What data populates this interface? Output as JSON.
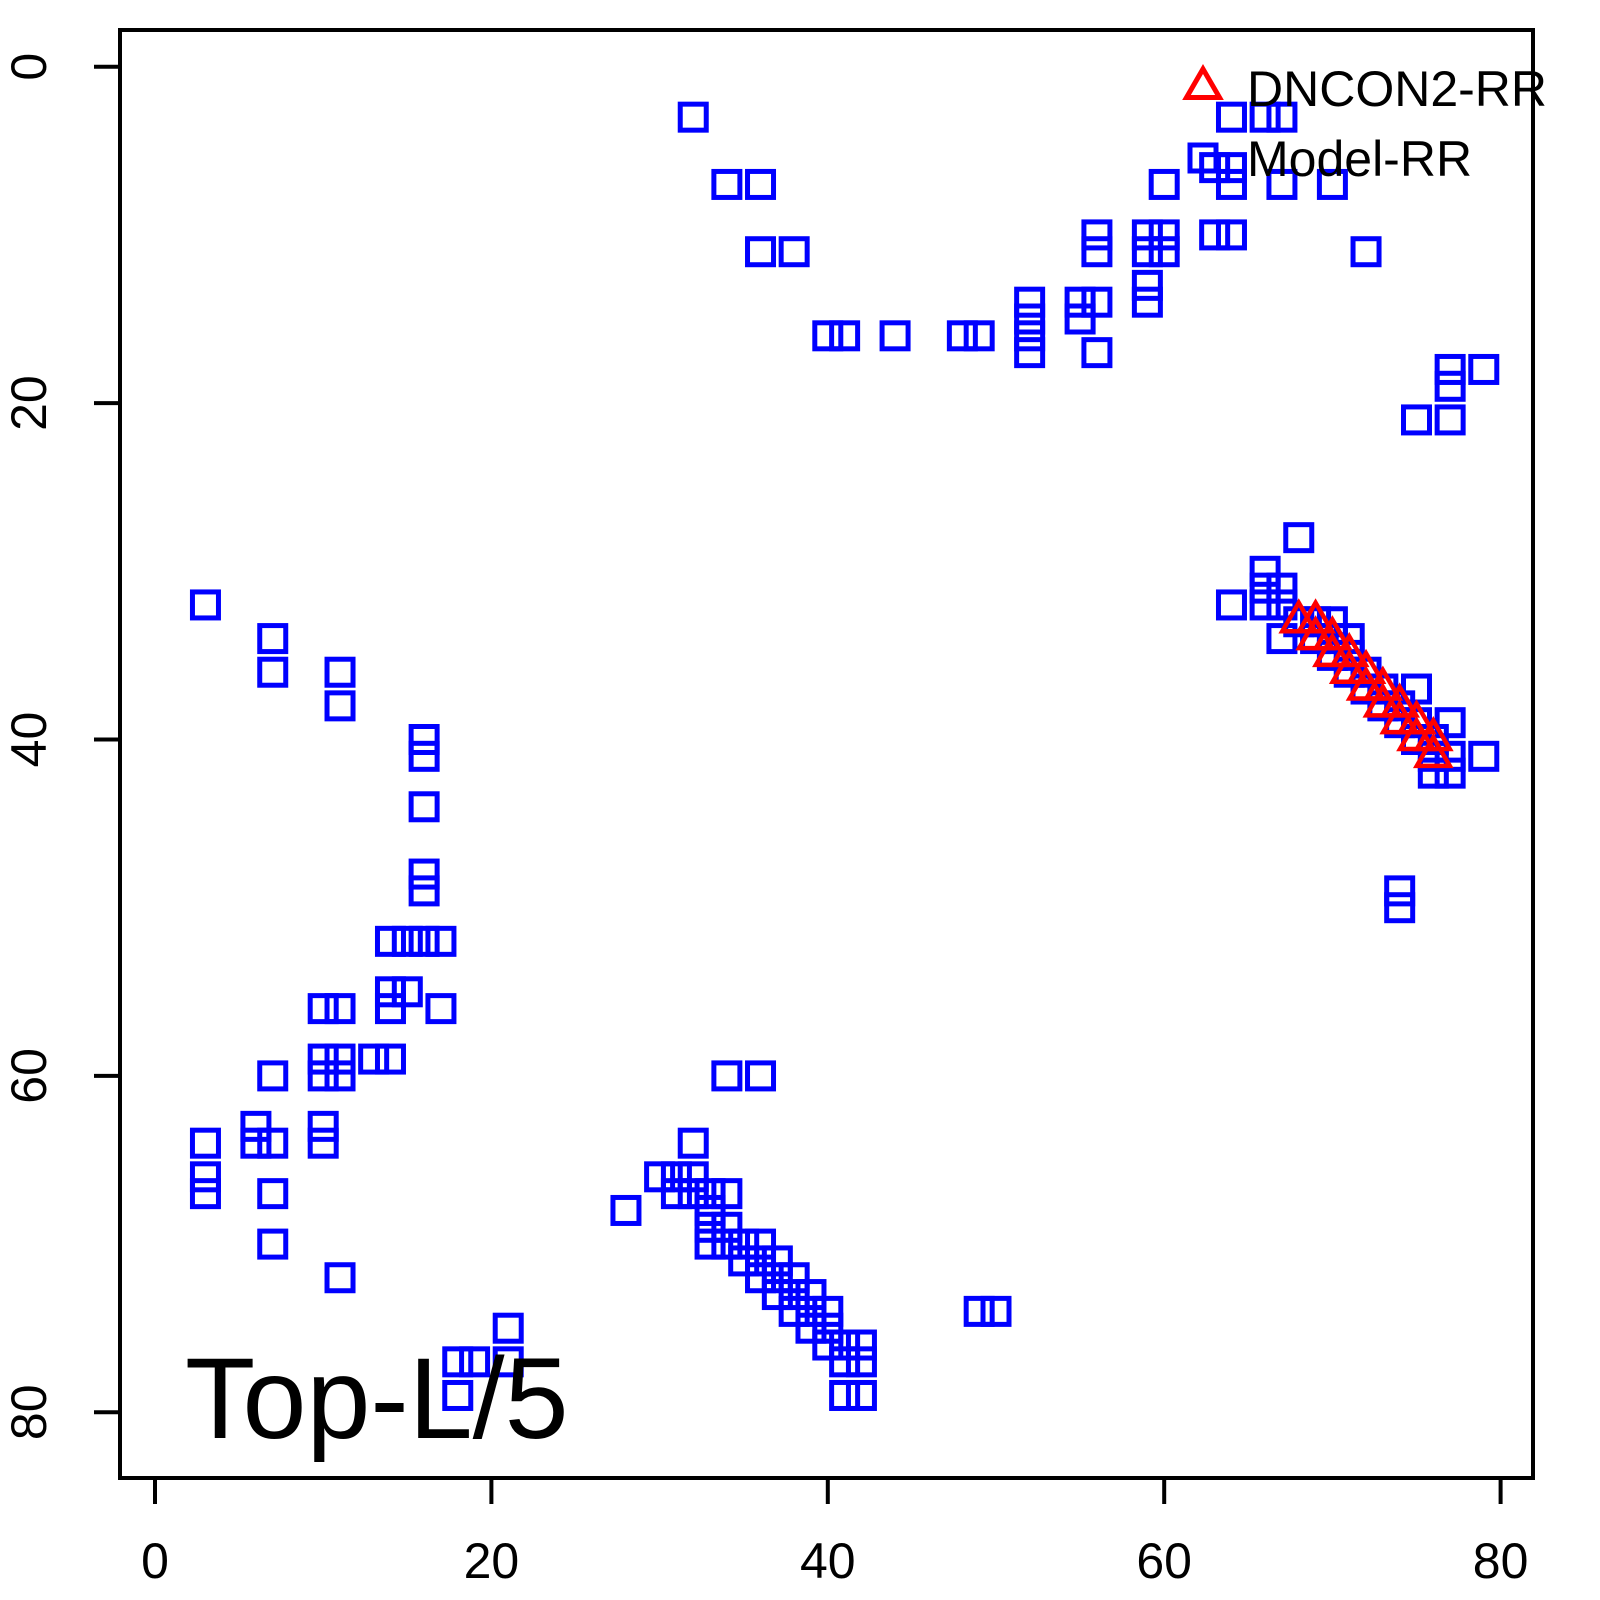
{
  "title": "Top-L/5",
  "legend": {
    "items": [
      {
        "label": "DNCON2-RR",
        "marker": "triangle-icon",
        "color": "#ff0000"
      },
      {
        "label": "Model-RR",
        "marker": "square-icon",
        "color": "#0000ff"
      }
    ]
  },
  "axes": {
    "x_ticks": [
      "0",
      "20",
      "40",
      "60",
      "80"
    ],
    "y_ticks": [
      "0",
      "20",
      "40",
      "60",
      "80"
    ]
  },
  "colors": {
    "model_rr": "#0000ff",
    "dncon2_rr": "#ff0000",
    "axis": "#000000",
    "background": "#ffffff"
  },
  "chart_data": {
    "type": "scatter",
    "title": "Top-L/5",
    "xlabel": "",
    "ylabel": "",
    "x_range": [
      0,
      82
    ],
    "y_range": [
      0,
      84
    ],
    "y_axis_inverted": true,
    "grid": false,
    "legend_position": "top-right",
    "series": [
      {
        "name": "Model-RR",
        "marker": "square",
        "color": "#0000ff",
        "points": [
          [
            32,
            3
          ],
          [
            34,
            7
          ],
          [
            36,
            7
          ],
          [
            36,
            11
          ],
          [
            38,
            11
          ],
          [
            40,
            16
          ],
          [
            41,
            16
          ],
          [
            44,
            16
          ],
          [
            48,
            16
          ],
          [
            49,
            16
          ],
          [
            64,
            3
          ],
          [
            66,
            3
          ],
          [
            67,
            3
          ],
          [
            63,
            6
          ],
          [
            64,
            6
          ],
          [
            60,
            7
          ],
          [
            64,
            7
          ],
          [
            67,
            7
          ],
          [
            70,
            7
          ],
          [
            56,
            10
          ],
          [
            59,
            10
          ],
          [
            60,
            10
          ],
          [
            63,
            10
          ],
          [
            64,
            10
          ],
          [
            56,
            11
          ],
          [
            59,
            11
          ],
          [
            60,
            11
          ],
          [
            72,
            11
          ],
          [
            59,
            13
          ],
          [
            52,
            14
          ],
          [
            55,
            14
          ],
          [
            56,
            14
          ],
          [
            59,
            14
          ],
          [
            52,
            15
          ],
          [
            55,
            15
          ],
          [
            52,
            16
          ],
          [
            52,
            17
          ],
          [
            56,
            17
          ],
          [
            77,
            18
          ],
          [
            79,
            18
          ],
          [
            77,
            19
          ],
          [
            75,
            21
          ],
          [
            77,
            21
          ],
          [
            68,
            28
          ],
          [
            66,
            30
          ],
          [
            66,
            31
          ],
          [
            67,
            31
          ],
          [
            64,
            32
          ],
          [
            66,
            32
          ],
          [
            67,
            32
          ],
          [
            68,
            33
          ],
          [
            69,
            33
          ],
          [
            70,
            33
          ],
          [
            67,
            34
          ],
          [
            69,
            34
          ],
          [
            70,
            34
          ],
          [
            71,
            34
          ],
          [
            70,
            35
          ],
          [
            71,
            35
          ],
          [
            71,
            36
          ],
          [
            72,
            36
          ],
          [
            72,
            37
          ],
          [
            73,
            37
          ],
          [
            75,
            37
          ],
          [
            73,
            38
          ],
          [
            74,
            38
          ],
          [
            74,
            39
          ],
          [
            75,
            39
          ],
          [
            77,
            39
          ],
          [
            75,
            40
          ],
          [
            76,
            40
          ],
          [
            76,
            41
          ],
          [
            77,
            41
          ],
          [
            79,
            41
          ],
          [
            76,
            42
          ],
          [
            77,
            42
          ],
          [
            74,
            49
          ],
          [
            74,
            50
          ],
          [
            3,
            32
          ],
          [
            7,
            34
          ],
          [
            7,
            36
          ],
          [
            11,
            36
          ],
          [
            11,
            38
          ],
          [
            16,
            40
          ],
          [
            16,
            41
          ],
          [
            16,
            44
          ],
          [
            16,
            48
          ],
          [
            16,
            49
          ],
          [
            14,
            52
          ],
          [
            15,
            52
          ],
          [
            16,
            52
          ],
          [
            17,
            52
          ],
          [
            14,
            55
          ],
          [
            15,
            55
          ],
          [
            10,
            56
          ],
          [
            11,
            56
          ],
          [
            14,
            56
          ],
          [
            17,
            56
          ],
          [
            10,
            59
          ],
          [
            11,
            59
          ],
          [
            13,
            59
          ],
          [
            14,
            59
          ],
          [
            7,
            60
          ],
          [
            10,
            60
          ],
          [
            11,
            60
          ],
          [
            6,
            63
          ],
          [
            10,
            63
          ],
          [
            3,
            64
          ],
          [
            6,
            64
          ],
          [
            7,
            64
          ],
          [
            10,
            64
          ],
          [
            3,
            66
          ],
          [
            3,
            67
          ],
          [
            7,
            67
          ],
          [
            7,
            70
          ],
          [
            11,
            72
          ],
          [
            21,
            75
          ],
          [
            18,
            77
          ],
          [
            19,
            77
          ],
          [
            21,
            77
          ],
          [
            18,
            79
          ],
          [
            34,
            60
          ],
          [
            36,
            60
          ],
          [
            32,
            64
          ],
          [
            30,
            66
          ],
          [
            31,
            66
          ],
          [
            32,
            66
          ],
          [
            31,
            67
          ],
          [
            32,
            67
          ],
          [
            33,
            67
          ],
          [
            34,
            67
          ],
          [
            28,
            68
          ],
          [
            33,
            68
          ],
          [
            33,
            69
          ],
          [
            34,
            69
          ],
          [
            33,
            70
          ],
          [
            34,
            70
          ],
          [
            35,
            70
          ],
          [
            36,
            70
          ],
          [
            35,
            71
          ],
          [
            36,
            71
          ],
          [
            37,
            71
          ],
          [
            36,
            72
          ],
          [
            37,
            72
          ],
          [
            38,
            72
          ],
          [
            37,
            73
          ],
          [
            38,
            73
          ],
          [
            39,
            73
          ],
          [
            38,
            74
          ],
          [
            39,
            74
          ],
          [
            40,
            74
          ],
          [
            49,
            74
          ],
          [
            50,
            74
          ],
          [
            39,
            75
          ],
          [
            40,
            75
          ],
          [
            40,
            76
          ],
          [
            41,
            76
          ],
          [
            42,
            76
          ],
          [
            41,
            77
          ],
          [
            42,
            77
          ],
          [
            41,
            79
          ],
          [
            42,
            79
          ]
        ]
      },
      {
        "name": "DNCON2-RR",
        "marker": "triangle",
        "color": "#ff0000",
        "points": [
          [
            68,
            33
          ],
          [
            69,
            33
          ],
          [
            69,
            34
          ],
          [
            70,
            34
          ],
          [
            70,
            35
          ],
          [
            71,
            35
          ],
          [
            71,
            36
          ],
          [
            72,
            36
          ],
          [
            72,
            37
          ],
          [
            73,
            37
          ],
          [
            73,
            38
          ],
          [
            74,
            38
          ],
          [
            74,
            39
          ],
          [
            75,
            39
          ],
          [
            75,
            40
          ],
          [
            76,
            40
          ],
          [
            76,
            41
          ]
        ]
      }
    ]
  }
}
